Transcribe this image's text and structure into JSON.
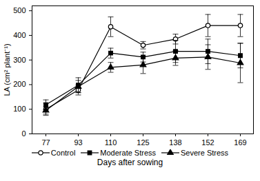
{
  "chart_data": {
    "type": "line",
    "x_label": "Days after sowing",
    "y_label": "LA (cm² plant⁻¹)",
    "categories": [
      "77",
      "93",
      "110",
      "125",
      "138",
      "152",
      "169"
    ],
    "ylim": [
      0,
      520
    ],
    "yticks": [
      0,
      100,
      200,
      300,
      400,
      500
    ],
    "legend": "bottom",
    "series": [
      {
        "name": "Control",
        "color": "#000000",
        "marker": "circle-open",
        "line_style": "solid",
        "values": [
          100,
          178,
          435,
          360,
          385,
          440,
          440
        ],
        "errors": [
          25,
          20,
          40,
          15,
          20,
          45,
          45
        ]
      },
      {
        "name": "Moderate Stress",
        "color": "#000000",
        "marker": "square",
        "line_style": "solid",
        "values": [
          118,
          198,
          328,
          312,
          335,
          335,
          318
        ],
        "errors": [
          20,
          30,
          20,
          20,
          45,
          50,
          50
        ]
      },
      {
        "name": "Severe Stress",
        "color": "#000000",
        "marker": "triangle",
        "line_style": "solid",
        "values": [
          95,
          192,
          270,
          280,
          308,
          312,
          288
        ],
        "errors": [
          15,
          25,
          20,
          35,
          30,
          50,
          80
        ]
      }
    ]
  }
}
